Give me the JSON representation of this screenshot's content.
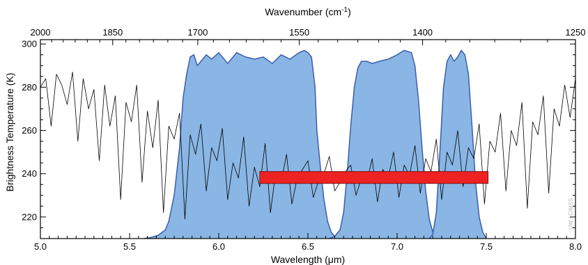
{
  "chart_data": {
    "type": "line",
    "title": "",
    "xlabel": "Wavelength (μm)",
    "x2label_main": "Wavenumber (cm",
    "x2label_sup": "-1",
    "x2label_close": ")",
    "ylabel": "Brightness Temperature (K)",
    "xlim": [
      5.0,
      8.0
    ],
    "ylim": [
      210,
      302
    ],
    "x_ticks": [
      "5.0",
      "5.5",
      "6.0",
      "6.5",
      "7.0",
      "7.5",
      "8.0"
    ],
    "x2_ticks": [
      "2000",
      "1850",
      "1700",
      "1550",
      "1400",
      "1250"
    ],
    "y_ticks": [
      "220",
      "240",
      "260",
      "280",
      "300"
    ],
    "grid": false,
    "credit": "UW / CIMSS",
    "colors": {
      "band_fill": "#89b6e4",
      "band_edge": "#3a5ea8",
      "bar_fill": "#ee2222",
      "bar_edge": "#7a1010",
      "spectrum": "#000000"
    },
    "spectrum_sampled": {
      "x": [
        5.0,
        5.03,
        5.06,
        5.09,
        5.12,
        5.15,
        5.18,
        5.21,
        5.24,
        5.27,
        5.3,
        5.33,
        5.36,
        5.39,
        5.42,
        5.45,
        5.48,
        5.51,
        5.54,
        5.57,
        5.6,
        5.63,
        5.66,
        5.69,
        5.72,
        5.75,
        5.78,
        5.81,
        5.84,
        5.87,
        5.9,
        5.93,
        5.96,
        5.99,
        6.02,
        6.05,
        6.08,
        6.11,
        6.14,
        6.17,
        6.2,
        6.23,
        6.26,
        6.29,
        6.32,
        6.35,
        6.38,
        6.41,
        6.44,
        6.47,
        6.5,
        6.53,
        6.56,
        6.59,
        6.62,
        6.65,
        6.68,
        6.71,
        6.74,
        6.77,
        6.8,
        6.83,
        6.86,
        6.89,
        6.92,
        6.95,
        6.98,
        7.01,
        7.04,
        7.07,
        7.1,
        7.13,
        7.16,
        7.19,
        7.22,
        7.25,
        7.28,
        7.31,
        7.34,
        7.37,
        7.4,
        7.43,
        7.46,
        7.49,
        7.52,
        7.55,
        7.58,
        7.61,
        7.64,
        7.67,
        7.7,
        7.73,
        7.76,
        7.79,
        7.82,
        7.85,
        7.88,
        7.91,
        7.94,
        7.97,
        8.0
      ],
      "y": [
        280,
        284,
        262,
        286,
        281,
        272,
        287,
        255,
        284,
        270,
        279,
        246,
        281,
        262,
        276,
        228,
        273,
        264,
        281,
        236,
        269,
        252,
        274,
        222,
        262,
        256,
        268,
        219,
        258,
        249,
        263,
        232,
        252,
        246,
        261,
        228,
        245,
        238,
        257,
        225,
        243,
        234,
        254,
        222,
        241,
        236,
        249,
        226,
        238,
        242,
        246,
        229,
        237,
        240,
        248,
        232,
        236,
        241,
        244,
        230,
        238,
        236,
        247,
        227,
        242,
        238,
        250,
        229,
        244,
        239,
        253,
        231,
        247,
        241,
        256,
        228,
        250,
        244,
        260,
        234,
        252,
        247,
        263,
        226,
        255,
        250,
        268,
        232,
        260,
        253,
        273,
        224,
        264,
        258,
        276,
        231,
        270,
        262,
        281,
        266,
        284
      ]
    },
    "bands": [
      {
        "x": [
          5.58,
          5.62,
          5.66,
          5.7,
          5.72,
          5.75,
          5.78,
          5.8,
          5.82,
          5.84,
          5.86,
          5.88,
          5.9,
          5.93,
          5.96,
          6.0,
          6.05,
          6.1,
          6.15,
          6.2,
          6.25,
          6.3,
          6.35,
          6.4,
          6.45,
          6.48,
          6.5,
          6.52,
          6.54,
          6.55,
          6.57,
          6.59,
          6.61,
          6.63,
          6.65,
          6.68
        ],
        "y": [
          210,
          210.5,
          211.5,
          214,
          218,
          230,
          252,
          275,
          286,
          294,
          295,
          290,
          292,
          295,
          293,
          296,
          291,
          296,
          294,
          293,
          294,
          291,
          295,
          293,
          296,
          297,
          296,
          294,
          280,
          260,
          243,
          228,
          218,
          213,
          211,
          210
        ]
      },
      {
        "x": [
          6.62,
          6.65,
          6.68,
          6.7,
          6.72,
          6.74,
          6.76,
          6.78,
          6.8,
          6.83,
          6.86,
          6.9,
          6.95,
          7.0,
          7.04,
          7.08,
          7.1,
          7.12,
          7.14,
          7.16,
          7.18,
          7.2,
          7.22,
          7.25
        ],
        "y": [
          210,
          211,
          214,
          222,
          240,
          262,
          280,
          289,
          292,
          292,
          291,
          292,
          293,
          295,
          297,
          296,
          290,
          274,
          252,
          232,
          219,
          213,
          211,
          210
        ]
      },
      {
        "x": [
          7.18,
          7.2,
          7.22,
          7.24,
          7.26,
          7.28,
          7.3,
          7.32,
          7.34,
          7.36,
          7.38,
          7.4,
          7.42,
          7.44,
          7.46,
          7.48,
          7.5
        ],
        "y": [
          210,
          212,
          222,
          250,
          280,
          292,
          295,
          292,
          294,
          297,
          295,
          286,
          262,
          236,
          220,
          213,
          210
        ]
      }
    ],
    "bar": {
      "x": [
        6.23,
        7.51
      ],
      "y": [
        235.5,
        241
      ]
    }
  }
}
